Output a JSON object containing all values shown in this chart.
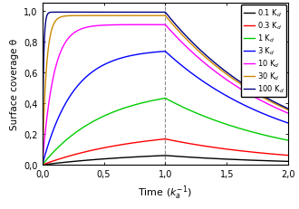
{
  "xlabel": "Time (k$_a^{-1}$)",
  "ylabel": "Surface coverage θ",
  "xlim": [
    0,
    2.0
  ],
  "ylim": [
    0,
    1.05
  ],
  "xticks": [
    0.0,
    0.5,
    1.0,
    1.5,
    2.0
  ],
  "yticks": [
    0.0,
    0.2,
    0.4,
    0.6,
    0.8,
    1.0
  ],
  "xtick_labels": [
    "0,0",
    "0,5",
    "1,0",
    "1,5",
    "2,0"
  ],
  "ytick_labels": [
    "0,0",
    "0,2",
    "0,4",
    "0,6",
    "0,8",
    "1,0"
  ],
  "vline_x": 1.0,
  "series": [
    {
      "label": "0.1 K$_d$",
      "color": "#000000",
      "kd_factor": 0.1
    },
    {
      "label": "0.3 K$_d$",
      "color": "#ff0000",
      "kd_factor": 0.3
    },
    {
      "label": "1 K$_d$",
      "color": "#00cc00",
      "kd_factor": 1.0
    },
    {
      "label": "3 K$_d$",
      "color": "#0000ff",
      "kd_factor": 3.0
    },
    {
      "label": "10 K$_d$",
      "color": "#ff00ff",
      "kd_factor": 10.0
    },
    {
      "label": "30 K$_d$",
      "color": "#cc8800",
      "kd_factor": 30.0
    },
    {
      "label": "100 K$_d$",
      "color": "#000080",
      "kd_factor": 100.0
    }
  ],
  "figsize": [
    3.3,
    2.32
  ],
  "dpi": 100
}
